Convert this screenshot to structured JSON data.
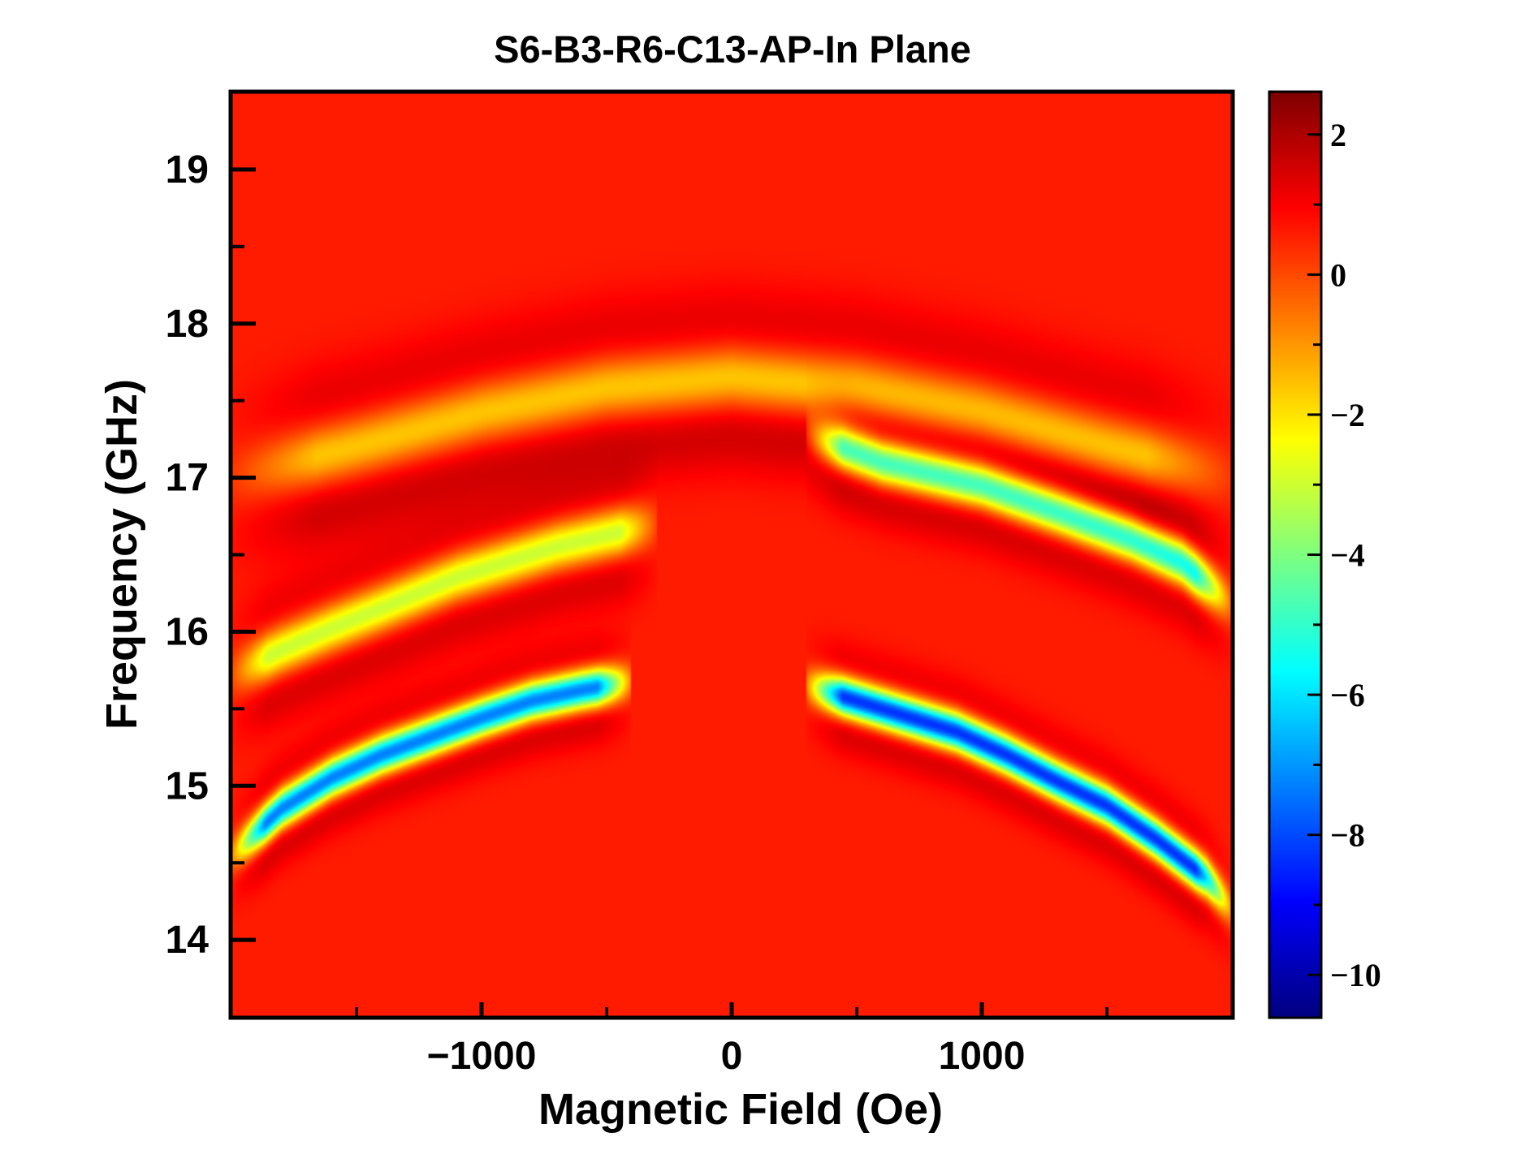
{
  "chart_data": {
    "type": "heatmap",
    "title": "S6-B3-R6-C13-AP-In Plane",
    "xlabel": "Magnetic Field (Oe)",
    "ylabel": "Frequency (GHz)",
    "xlim": [
      -2000,
      2000
    ],
    "ylim": [
      13.5,
      19.5
    ],
    "x_ticks": [
      -1000,
      0,
      1000
    ],
    "x_tick_labels": [
      "−1000",
      "0",
      "1000"
    ],
    "x_minor_ticks": [
      -1500,
      -500,
      500,
      1500
    ],
    "y_ticks": [
      14,
      15,
      16,
      17,
      18,
      19
    ],
    "y_tick_labels": [
      "14",
      "15",
      "16",
      "17",
      "18",
      "19"
    ],
    "y_minor_ticks": [
      14.5,
      15.5,
      16.5,
      17.5,
      18.5
    ],
    "colorbar": {
      "range": [
        -10.6,
        2.6
      ],
      "colormap": "jet",
      "ticks": [
        2,
        0,
        -2,
        -4,
        -6,
        -8,
        -10
      ],
      "tick_labels": [
        "2",
        "0",
        "−2",
        "−4",
        "−6",
        "−8",
        "−10"
      ],
      "minor_ticks": [
        1,
        -1,
        -3,
        -5,
        -7,
        -9
      ]
    },
    "background_value": 0.6,
    "modes": [
      {
        "description_id": "upper-acoustic",
        "points": [
          [
            -2000,
            17.0
          ],
          [
            -1500,
            17.2
          ],
          [
            -1000,
            17.42
          ],
          [
            -500,
            17.58
          ],
          [
            0,
            17.65
          ],
          [
            500,
            17.58
          ],
          [
            1000,
            17.42
          ],
          [
            1500,
            17.2
          ],
          [
            2000,
            17.0
          ]
        ],
        "dip": -1.8,
        "width": 0.14,
        "shoulder": 1.6
      },
      {
        "description_id": "upper-right-branch",
        "points": [
          [
            300,
            17.28
          ],
          [
            600,
            17.1
          ],
          [
            1000,
            16.95
          ],
          [
            1300,
            16.78
          ],
          [
            1600,
            16.6
          ],
          [
            1800,
            16.45
          ],
          [
            2000,
            16.18
          ]
        ],
        "dip": -5.8,
        "width": 0.1,
        "shoulder": 1.4
      },
      {
        "description_id": "upper-left-branch",
        "points": [
          [
            -2000,
            15.72
          ],
          [
            -1800,
            15.88
          ],
          [
            -1600,
            16.02
          ],
          [
            -1400,
            16.15
          ],
          [
            -1100,
            16.35
          ],
          [
            -700,
            16.55
          ],
          [
            -300,
            16.7
          ]
        ],
        "dip": -3.2,
        "width": 0.11,
        "shoulder": 1.4
      },
      {
        "description_id": "lower-left-branch",
        "points": [
          [
            -2000,
            14.55
          ],
          [
            -1800,
            14.85
          ],
          [
            -1600,
            15.05
          ],
          [
            -1400,
            15.2
          ],
          [
            -1200,
            15.32
          ],
          [
            -1000,
            15.44
          ],
          [
            -800,
            15.55
          ],
          [
            -600,
            15.62
          ],
          [
            -400,
            15.68
          ]
        ],
        "dip": -7.5,
        "width": 0.085,
        "shoulder": 1.5
      },
      {
        "description_id": "lower-right-branch",
        "points": [
          [
            300,
            15.65
          ],
          [
            600,
            15.5
          ],
          [
            900,
            15.35
          ],
          [
            1100,
            15.2
          ],
          [
            1300,
            15.03
          ],
          [
            1500,
            14.87
          ],
          [
            1700,
            14.65
          ],
          [
            1900,
            14.4
          ],
          [
            2000,
            14.2
          ]
        ],
        "dip": -8.5,
        "width": 0.085,
        "shoulder": 1.5
      }
    ]
  }
}
